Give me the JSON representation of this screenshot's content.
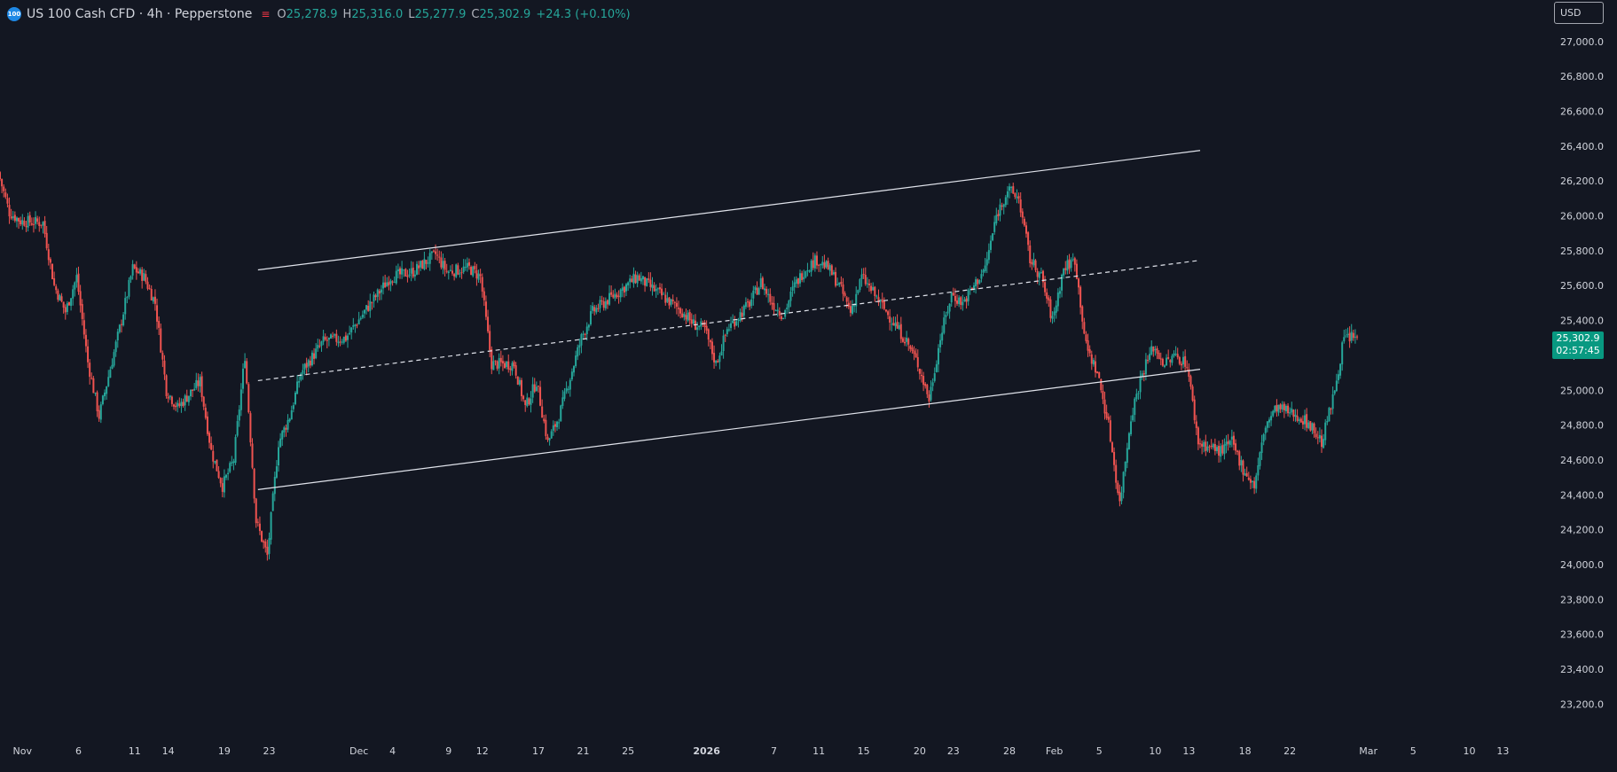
{
  "header": {
    "symbol_badge": "100",
    "title": "US 100 Cash CFD · 4h · Pepperstone",
    "ohlc_icon": "equals-icon",
    "open_label": "O",
    "open": "25,278.9",
    "high_label": "H",
    "high": "25,316.0",
    "low_label": "L",
    "low": "25,277.9",
    "close_label": "C",
    "close": "25,302.9",
    "change": "+24.3 (+0.10%)"
  },
  "currency": "USD",
  "last_price": {
    "price": "25,302.9",
    "countdown": "02:57:45"
  },
  "colors": {
    "background": "#131722",
    "up": "#26a69a",
    "down": "#ef5350",
    "axis_text": "#d1d4dc",
    "last_price_bg": "#089981",
    "trendline": "#e0e3eb"
  },
  "chart_data": {
    "type": "candlestick",
    "y_axis": {
      "min": 23100,
      "max": 27050,
      "ticks": [
        27000,
        26800,
        26600,
        26400,
        26200,
        26000,
        25800,
        25600,
        25400,
        25200,
        25000,
        24800,
        24600,
        24400,
        24200,
        24000,
        23800,
        23600,
        23400,
        23200
      ],
      "tick_labels": [
        "27,000.0",
        "26,800.0",
        "26,600.0",
        "26,400.0",
        "26,200.0",
        "26,000.0",
        "25,800.0",
        "25,600.0",
        "25,400.0",
        "25,200.0",
        "25,000.0",
        "24,800.0",
        "24,600.0",
        "24,400.0",
        "24,200.0",
        "24,000.0",
        "23,800.0",
        "23,600.0",
        "23,400.0",
        "23,200.0"
      ]
    },
    "x_axis": {
      "start": "2025-10-30",
      "end": "2026-03-17",
      "ticks": [
        {
          "date": "2025-11-01",
          "label": "Nov",
          "bold": false
        },
        {
          "date": "2025-11-06",
          "label": "6",
          "bold": false
        },
        {
          "date": "2025-11-11",
          "label": "11",
          "bold": false
        },
        {
          "date": "2025-11-14",
          "label": "14",
          "bold": false
        },
        {
          "date": "2025-11-19",
          "label": "19",
          "bold": false
        },
        {
          "date": "2025-11-23",
          "label": "23",
          "bold": false
        },
        {
          "date": "2025-12-01",
          "label": "Dec",
          "bold": false
        },
        {
          "date": "2025-12-04",
          "label": "4",
          "bold": false
        },
        {
          "date": "2025-12-09",
          "label": "9",
          "bold": false
        },
        {
          "date": "2025-12-12",
          "label": "12",
          "bold": false
        },
        {
          "date": "2025-12-17",
          "label": "17",
          "bold": false
        },
        {
          "date": "2025-12-21",
          "label": "21",
          "bold": false
        },
        {
          "date": "2025-12-25",
          "label": "25",
          "bold": false
        },
        {
          "date": "2026-01-01",
          "label": "2026",
          "bold": true
        },
        {
          "date": "2026-01-07",
          "label": "7",
          "bold": false
        },
        {
          "date": "2026-01-11",
          "label": "11",
          "bold": false
        },
        {
          "date": "2026-01-15",
          "label": "15",
          "bold": false
        },
        {
          "date": "2026-01-20",
          "label": "20",
          "bold": false
        },
        {
          "date": "2026-01-23",
          "label": "23",
          "bold": false
        },
        {
          "date": "2026-01-28",
          "label": "28",
          "bold": false
        },
        {
          "date": "2026-02-01",
          "label": "Feb",
          "bold": false
        },
        {
          "date": "2026-02-05",
          "label": "5",
          "bold": false
        },
        {
          "date": "2026-02-10",
          "label": "10",
          "bold": false
        },
        {
          "date": "2026-02-13",
          "label": "13",
          "bold": false
        },
        {
          "date": "2026-02-18",
          "label": "18",
          "bold": false
        },
        {
          "date": "2026-02-22",
          "label": "22",
          "bold": false
        },
        {
          "date": "2026-03-01",
          "label": "Mar",
          "bold": false
        },
        {
          "date": "2026-03-05",
          "label": "5",
          "bold": false
        },
        {
          "date": "2026-03-10",
          "label": "10",
          "bold": false
        },
        {
          "date": "2026-03-13",
          "label": "13",
          "bold": false
        }
      ]
    },
    "close_path": [
      [
        "2025-10-30",
        26250
      ],
      [
        "2025-10-31",
        26020
      ],
      [
        "2025-11-01",
        25970
      ],
      [
        "2025-11-03",
        25960
      ],
      [
        "2025-11-04",
        25600
      ],
      [
        "2025-11-05",
        25450
      ],
      [
        "2025-11-06",
        25650
      ],
      [
        "2025-11-07",
        25160
      ],
      [
        "2025-11-08",
        24850
      ],
      [
        "2025-11-10",
        25400
      ],
      [
        "2025-11-11",
        25700
      ],
      [
        "2025-11-12",
        25650
      ],
      [
        "2025-11-13",
        25500
      ],
      [
        "2025-11-14",
        25000
      ],
      [
        "2025-11-15",
        24900
      ],
      [
        "2025-11-17",
        25050
      ],
      [
        "2025-11-18",
        24650
      ],
      [
        "2025-11-19",
        24450
      ],
      [
        "2025-11-20",
        24600
      ],
      [
        "2025-11-21",
        25200
      ],
      [
        "2025-11-22",
        24250
      ],
      [
        "2025-11-23",
        24050
      ],
      [
        "2025-11-24",
        24700
      ],
      [
        "2025-11-25",
        24850
      ],
      [
        "2025-11-26",
        25100
      ],
      [
        "2025-11-28",
        25280
      ],
      [
        "2025-11-30",
        25300
      ],
      [
        "2025-12-02",
        25480
      ],
      [
        "2025-12-04",
        25650
      ],
      [
        "2025-12-06",
        25680
      ],
      [
        "2025-12-08",
        25780
      ],
      [
        "2025-12-09",
        25680
      ],
      [
        "2025-12-11",
        25700
      ],
      [
        "2025-12-12",
        25650
      ],
      [
        "2025-12-13",
        25150
      ],
      [
        "2025-12-15",
        25150
      ],
      [
        "2025-12-16",
        24900
      ],
      [
        "2025-12-17",
        25050
      ],
      [
        "2025-12-18",
        24700
      ],
      [
        "2025-12-19",
        24850
      ],
      [
        "2025-12-21",
        25300
      ],
      [
        "2025-12-22",
        25450
      ],
      [
        "2025-12-24",
        25550
      ],
      [
        "2025-12-26",
        25650
      ],
      [
        "2025-12-28",
        25550
      ],
      [
        "2025-12-30",
        25450
      ],
      [
        "2025-12-31",
        25380
      ],
      [
        "2026-01-01",
        25350
      ],
      [
        "2026-01-02",
        25150
      ],
      [
        "2026-01-03",
        25350
      ],
      [
        "2026-01-05",
        25500
      ],
      [
        "2026-01-06",
        25620
      ],
      [
        "2026-01-07",
        25500
      ],
      [
        "2026-01-08",
        25430
      ],
      [
        "2026-01-09",
        25600
      ],
      [
        "2026-01-10",
        25700
      ],
      [
        "2026-01-11",
        25750
      ],
      [
        "2026-01-12",
        25700
      ],
      [
        "2026-01-13",
        25600
      ],
      [
        "2026-01-14",
        25450
      ],
      [
        "2026-01-15",
        25650
      ],
      [
        "2026-01-16",
        25560
      ],
      [
        "2026-01-19",
        25280
      ],
      [
        "2026-01-20",
        25150
      ],
      [
        "2026-01-21",
        24950
      ],
      [
        "2026-01-22",
        25300
      ],
      [
        "2026-01-23",
        25550
      ],
      [
        "2026-01-24",
        25500
      ],
      [
        "2026-01-26",
        25700
      ],
      [
        "2026-01-27",
        26000
      ],
      [
        "2026-01-28",
        26150
      ],
      [
        "2026-01-29",
        26100
      ],
      [
        "2026-01-30",
        25750
      ],
      [
        "2026-01-31",
        25650
      ],
      [
        "2026-02-01",
        25400
      ],
      [
        "2026-02-02",
        25700
      ],
      [
        "2026-02-03",
        25750
      ],
      [
        "2026-02-04",
        25250
      ],
      [
        "2026-02-05",
        25100
      ],
      [
        "2026-02-06",
        24800
      ],
      [
        "2026-02-07",
        24350
      ],
      [
        "2026-02-08",
        24850
      ],
      [
        "2026-02-09",
        25100
      ],
      [
        "2026-02-10",
        25250
      ],
      [
        "2026-02-11",
        25150
      ],
      [
        "2026-02-12",
        25200
      ],
      [
        "2026-02-13",
        25150
      ],
      [
        "2026-02-14",
        24700
      ],
      [
        "2026-02-16",
        24650
      ],
      [
        "2026-02-17",
        24700
      ],
      [
        "2026-02-18",
        24550
      ],
      [
        "2026-02-19",
        24450
      ],
      [
        "2026-02-20",
        24800
      ],
      [
        "2026-02-21",
        24900
      ],
      [
        "2026-02-23",
        24850
      ],
      [
        "2026-02-24",
        24800
      ],
      [
        "2026-02-25",
        24700
      ],
      [
        "2026-02-26",
        24950
      ],
      [
        "2026-02-27",
        25300
      ],
      [
        "2026-02-28",
        25303
      ]
    ],
    "trendlines": [
      {
        "name": "upper",
        "style": "solid",
        "from": [
          "2025-11-22",
          25690
        ],
        "to": [
          "2026-02-14",
          26375
        ]
      },
      {
        "name": "middle",
        "style": "dashed",
        "from": [
          "2025-11-22",
          25055
        ],
        "to": [
          "2026-02-14",
          25745
        ]
      },
      {
        "name": "lower",
        "style": "solid",
        "from": [
          "2025-11-22",
          24430
        ],
        "to": [
          "2026-02-14",
          25120
        ]
      }
    ]
  }
}
